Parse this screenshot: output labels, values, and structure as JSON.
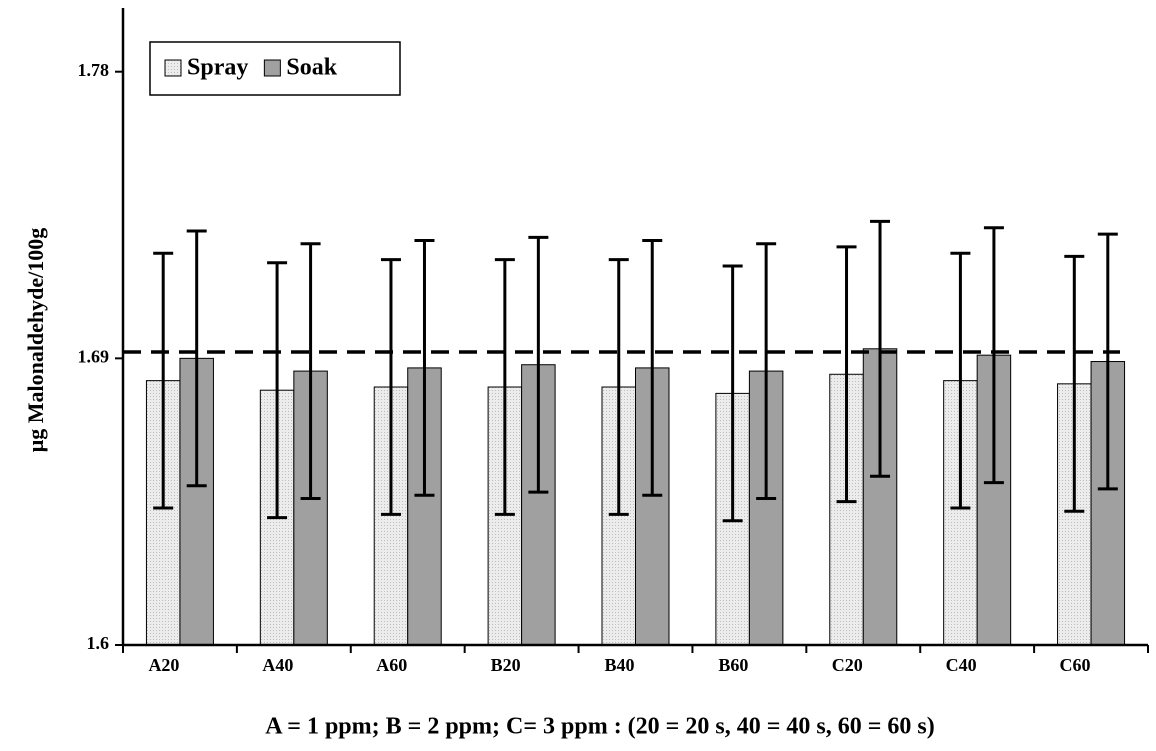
{
  "chart_data": {
    "type": "bar",
    "y_label": "μg Malonaldehyde/100g",
    "x_label": "A = 1 ppm; B = 2 ppm; C= 3 ppm : (20 = 20 s, 40 = 40 s, 60 = 60 s)",
    "categories": [
      "A20",
      "A40",
      "A60",
      "B20",
      "B40",
      "B60",
      "C20",
      "C40",
      "C60"
    ],
    "series": [
      {
        "name": "Spray",
        "color": "#e6e6e6",
        "values": [
          1.683,
          1.68,
          1.681,
          1.681,
          1.681,
          1.679,
          1.685,
          1.683,
          1.682
        ],
        "errors": [
          0.04,
          0.04,
          0.04,
          0.04,
          0.04,
          0.04,
          0.04,
          0.04,
          0.04
        ]
      },
      {
        "name": "Soak",
        "color": "#a0a0a0",
        "values": [
          1.69,
          1.686,
          1.687,
          1.688,
          1.687,
          1.686,
          1.693,
          1.691,
          1.689
        ],
        "errors": [
          0.04,
          0.04,
          0.04,
          0.04,
          0.04,
          0.04,
          0.04,
          0.04,
          0.04
        ]
      }
    ],
    "reference_line": 1.692,
    "ylim": [
      1.6,
      1.8
    ],
    "yticks": [
      1.6,
      1.69,
      1.78
    ],
    "legend": "top-left"
  }
}
